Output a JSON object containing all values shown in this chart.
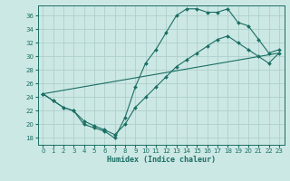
{
  "xlabel": "Humidex (Indice chaleur)",
  "bg_color": "#cce8e4",
  "grid_color": "#aecfcb",
  "line_color": "#1a6e64",
  "xlim": [
    -0.5,
    23.5
  ],
  "ylim": [
    17,
    37.5
  ],
  "xticks": [
    0,
    1,
    2,
    3,
    4,
    5,
    6,
    7,
    8,
    9,
    10,
    11,
    12,
    13,
    14,
    15,
    16,
    17,
    18,
    19,
    20,
    21,
    22,
    23
  ],
  "yticks": [
    18,
    20,
    22,
    24,
    26,
    28,
    30,
    32,
    34,
    36
  ],
  "line1_x": [
    0,
    1,
    2,
    3,
    4,
    5,
    6,
    7,
    8,
    9,
    10,
    11,
    12,
    13,
    14,
    15,
    16,
    17,
    18,
    19,
    20,
    21,
    22,
    23
  ],
  "line1_y": [
    24.5,
    23.5,
    22.5,
    22,
    20,
    19.5,
    19,
    18,
    21,
    25.5,
    29,
    31,
    33.5,
    36,
    37,
    37,
    36.5,
    36.5,
    37,
    35,
    34.5,
    32.5,
    30.5,
    31
  ],
  "line2_x": [
    0,
    1,
    2,
    3,
    4,
    5,
    6,
    7,
    8,
    9,
    10,
    11,
    12,
    13,
    14,
    15,
    16,
    17,
    18,
    19,
    20,
    21,
    22,
    23
  ],
  "line2_y": [
    24.5,
    23.5,
    22.5,
    22,
    20.5,
    19.8,
    19.2,
    18.5,
    20.0,
    22.5,
    24.0,
    25.5,
    27.0,
    28.5,
    29.5,
    30.5,
    31.5,
    32.5,
    33.0,
    32.0,
    31.0,
    30.0,
    29.0,
    30.5
  ],
  "line3_x": [
    0,
    23
  ],
  "line3_y": [
    24.5,
    30.5
  ]
}
